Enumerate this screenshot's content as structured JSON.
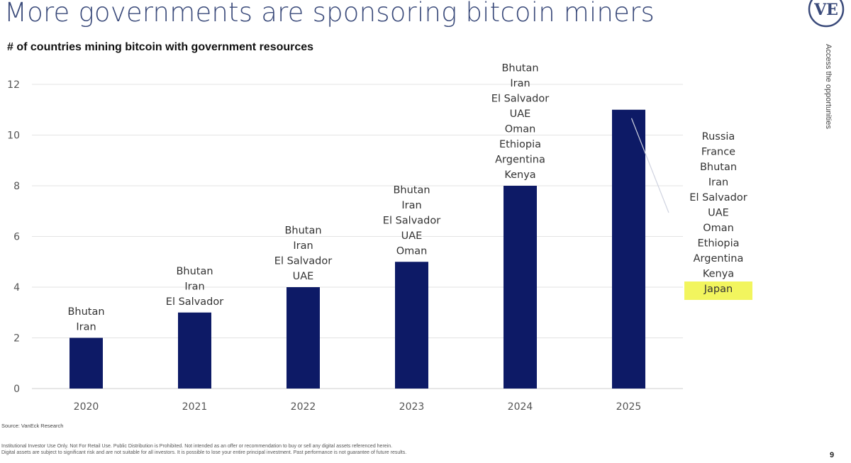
{
  "page": {
    "title": "More governments are sponsoring bitcoin miners",
    "logo_text": "VE",
    "side_text": "Access the opportunities",
    "source": "Source: VanEck Research",
    "disclaimer_line1": "Institutional Investor Use Only. Not For Retail Use. Public Distribution is Prohibited. Not intended as an offer or recommendation to buy or sell any digital assets referenced herein.",
    "disclaimer_line2": "Digital assets are subject to significant risk and are not suitable for all investors. It is possible to lose your entire principal investment. Past performance is not guarantee of future results.",
    "page_number": "9"
  },
  "colors": {
    "bar": "#0d1a66",
    "title": "#3a4a7a",
    "highlight": "#f2f55e",
    "gridline": "#e3e3e3",
    "axis": "#cfcfcf"
  },
  "chart_data": {
    "type": "bar",
    "title": "# of countries mining bitcoin with government resources",
    "categories": [
      "2020",
      "2021",
      "2022",
      "2023",
      "2024",
      "2025"
    ],
    "values": [
      2,
      3,
      4,
      5,
      8,
      11
    ],
    "ylim": [
      0,
      12
    ],
    "yticks": [
      0,
      2,
      4,
      6,
      8,
      10,
      12
    ],
    "grid": true,
    "legend": "none",
    "annotations": [
      {
        "category": "2020",
        "countries": [
          "Bhutan",
          "Iran"
        ]
      },
      {
        "category": "2021",
        "countries": [
          "Bhutan",
          "Iran",
          "El Salvador"
        ]
      },
      {
        "category": "2022",
        "countries": [
          "Bhutan",
          "Iran",
          "El Salvador",
          "UAE"
        ]
      },
      {
        "category": "2023",
        "countries": [
          "Bhutan",
          "Iran",
          "El Salvador",
          "UAE",
          "Oman"
        ]
      },
      {
        "category": "2024",
        "countries": [
          "Bhutan",
          "Iran",
          "El Salvador",
          "UAE",
          "Oman",
          "Ethiopia",
          "Argentina",
          "Kenya"
        ]
      },
      {
        "category": "2025",
        "placement": "right-callout",
        "countries": [
          "Russia",
          "France",
          "Bhutan",
          "Iran",
          "El Salvador",
          "UAE",
          "Oman",
          "Ethiopia",
          "Argentina",
          "Kenya",
          "Japan"
        ],
        "highlighted": [
          "Japan"
        ]
      }
    ]
  }
}
